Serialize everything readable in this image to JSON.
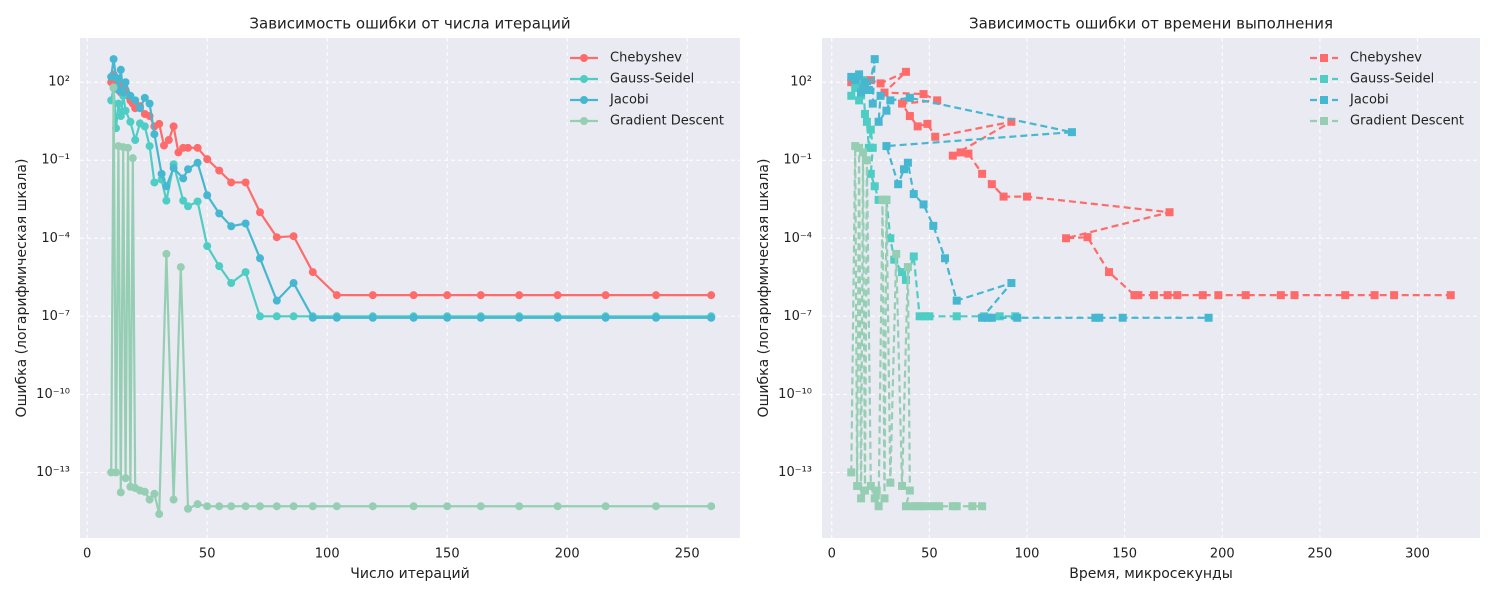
{
  "chart_data": [
    {
      "type": "line",
      "title": "Зависимость ошибки от числа итераций",
      "x_label": "Число итераций",
      "y_label": "Ошибка (логарифмическая шкала)",
      "xlim": [
        -3,
        272
      ],
      "ylim": [
        3e-16,
        5000
      ],
      "log_y": true,
      "grid": true,
      "legend": "upper right",
      "marker": "o",
      "linestyle": "solid",
      "xticks": [
        0,
        50,
        100,
        150,
        200,
        250
      ],
      "yticks": [
        {
          "value": 100,
          "label": "10²"
        },
        {
          "value": 0.1,
          "label": "10⁻¹"
        },
        {
          "value": 0.0001,
          "label": "10⁻⁴"
        },
        {
          "value": 1e-07,
          "label": "10⁻⁷"
        },
        {
          "value": 1e-10,
          "label": "10⁻¹⁰"
        },
        {
          "value": 1e-13,
          "label": "10⁻¹³"
        }
      ],
      "series": [
        {
          "name": "Chebyshev",
          "color": "#ff6b6b",
          "x": [
            10,
            11,
            12,
            13,
            14,
            15,
            16,
            17,
            18,
            19,
            20,
            22,
            24,
            26,
            28,
            30,
            32,
            34,
            36,
            38,
            40,
            42,
            46,
            50,
            55,
            60,
            66,
            72,
            79,
            86,
            94,
            104,
            119,
            136,
            150,
            164,
            180,
            196,
            216,
            237,
            260
          ],
          "values": [
            100,
            200,
            60,
            120,
            40,
            80,
            50,
            30,
            20,
            15,
            10,
            12,
            6,
            5,
            2,
            2.5,
            0.37,
            0.6,
            2,
            0.2,
            0.3,
            0.3,
            0.3,
            0.11,
            0.04,
            0.014,
            0.014,
            0.001,
            0.00011,
            0.00012,
            5e-06,
            6.5e-07,
            6.5e-07,
            6.5e-07,
            6.5e-07,
            6.5e-07,
            6.5e-07,
            6.5e-07,
            6.5e-07,
            6.5e-07,
            6.5e-07
          ]
        },
        {
          "name": "Gauss-Seidel",
          "color": "#4ecdc4",
          "x": [
            10,
            11,
            12,
            13,
            14,
            15,
            16,
            18,
            20,
            22,
            24,
            26,
            28,
            31,
            33,
            36,
            40,
            42,
            46,
            50,
            55,
            60,
            66,
            72,
            79,
            86,
            94,
            104,
            119,
            136,
            150,
            164,
            180,
            196,
            216,
            237,
            260
          ],
          "values": [
            20,
            60,
            1.7,
            15,
            5,
            30,
            8,
            3,
            0.6,
            2.6,
            2,
            0.35,
            0.014,
            0.018,
            0.0028,
            0.07,
            0.0028,
            0.0017,
            0.0026,
            5e-05,
            8.5e-06,
            1.9e-06,
            5e-06,
            1e-07,
            1e-07,
            1e-07,
            1e-07,
            1e-07,
            1e-07,
            1e-07,
            1e-07,
            1e-07,
            1e-07,
            1e-07,
            1e-07,
            1e-07,
            1e-07
          ]
        },
        {
          "name": "Jacobi",
          "color": "#45b7d1",
          "x": [
            10,
            11,
            12,
            13,
            14,
            15,
            16,
            18,
            20,
            22,
            24,
            26,
            28,
            31,
            33,
            36,
            40,
            42,
            46,
            50,
            55,
            60,
            66,
            72,
            79,
            86,
            94,
            104,
            119,
            136,
            150,
            164,
            180,
            196,
            216,
            237,
            260
          ],
          "values": [
            160,
            770,
            150,
            50,
            300,
            40,
            100,
            30,
            20,
            10,
            25,
            15,
            1,
            0.03,
            0.01,
            0.05,
            0.02,
            0.045,
            0.08,
            0.0045,
            0.0009,
            0.00029,
            0.00037,
            1.7e-05,
            4e-07,
            1.9e-06,
            8.8e-08,
            8.8e-08,
            8.8e-08,
            8.8e-08,
            8.8e-08,
            8.8e-08,
            8.8e-08,
            8.8e-08,
            8.8e-08,
            8.8e-08,
            8.8e-08
          ]
        },
        {
          "name": "Gradient Descent",
          "color": "#96ceb4",
          "x": [
            10,
            11,
            12,
            13,
            14,
            15,
            16,
            17,
            18,
            19,
            20,
            22,
            24,
            26,
            28,
            30,
            33,
            36,
            39,
            42,
            46,
            50,
            55,
            60,
            66,
            72,
            79,
            86,
            94,
            104,
            119,
            136,
            150,
            164,
            180,
            196,
            216,
            237,
            260
          ],
          "values": [
            1e-13,
            63,
            1e-13,
            0.35,
            1.7e-14,
            0.32,
            6e-14,
            0.3,
            2.8e-14,
            0.12,
            2.5e-14,
            2e-14,
            1.8e-14,
            9e-15,
            1.5e-14,
            2.5e-15,
            2.5e-05,
            9e-15,
            7.8e-06,
            4e-15,
            6e-15,
            5e-15,
            5e-15,
            5e-15,
            5e-15,
            5e-15,
            5e-15,
            5e-15,
            5e-15,
            5e-15,
            5e-15,
            5e-15,
            5e-15,
            5e-15,
            5e-15,
            5e-15,
            5e-15,
            5e-15,
            5e-15
          ]
        }
      ]
    },
    {
      "type": "line",
      "title": "Зависимость ошибки от времени выполнения",
      "x_label": "Время, микросекунды",
      "y_label": "Ошибка (логарифмическая шкала)",
      "xlim": [
        -5,
        332
      ],
      "ylim": [
        3e-16,
        5000
      ],
      "log_y": true,
      "grid": true,
      "legend": "upper right",
      "marker": "s",
      "linestyle": "dashed",
      "xticks": [
        0,
        50,
        100,
        150,
        200,
        250,
        300
      ],
      "yticks": [
        {
          "value": 100,
          "label": "10²"
        },
        {
          "value": 0.1,
          "label": "10⁻¹"
        },
        {
          "value": 0.0001,
          "label": "10⁻⁴"
        },
        {
          "value": 1e-07,
          "label": "10⁻⁷"
        },
        {
          "value": 1e-10,
          "label": "10⁻¹⁰"
        },
        {
          "value": 1e-13,
          "label": "10⁻¹³"
        }
      ],
      "series": [
        {
          "name": "Chebyshev",
          "color": "#ff6b6b",
          "x": [
            10,
            15,
            20,
            25,
            38,
            27,
            47,
            54,
            36,
            40,
            44,
            49,
            53,
            92,
            62,
            66,
            70,
            77,
            82,
            88,
            100,
            173,
            120,
            131,
            142,
            155,
            157,
            165,
            172,
            177,
            190,
            198,
            212,
            230,
            237,
            263,
            278,
            288,
            317
          ],
          "values": [
            100,
            60,
            120,
            90,
            250,
            40,
            35,
            20,
            15,
            5,
            2,
            2.5,
            0.8,
            3,
            0.15,
            0.2,
            0.18,
            0.03,
            0.012,
            0.004,
            0.004,
            0.001,
            0.0001,
            0.00011,
            5e-06,
            6.5e-07,
            6.5e-07,
            6.5e-07,
            6.5e-07,
            6.5e-07,
            6.5e-07,
            6.5e-07,
            6.5e-07,
            6.5e-07,
            6.5e-07,
            6.5e-07,
            6.5e-07,
            6.5e-07,
            6.5e-07
          ]
        },
        {
          "name": "Gauss-Seidel",
          "color": "#4ecdc4",
          "x": [
            10,
            12,
            13,
            14,
            15,
            16,
            17,
            18,
            19,
            20,
            21,
            20,
            22,
            24,
            26,
            28,
            30,
            32,
            36,
            38,
            42,
            45,
            48,
            50,
            64,
            78,
            86,
            94
          ],
          "values": [
            30,
            60,
            100,
            20,
            40,
            120,
            6,
            3,
            0.3,
            1.5,
            0.3,
            0.03,
            0.01,
            0.003,
            0.003,
            0.003,
            0.0001,
            1.5e-05,
            5e-06,
            2.5e-06,
            2e-05,
            1e-07,
            1e-07,
            1e-07,
            1e-07,
            1e-07,
            1e-07,
            1e-07
          ]
        },
        {
          "name": "Jacobi",
          "color": "#45b7d1",
          "x": [
            10,
            12,
            14,
            15,
            17,
            19,
            22,
            21,
            25,
            24,
            28,
            30,
            40,
            123,
            28,
            34,
            37,
            39,
            42,
            47,
            52,
            58,
            64,
            92,
            77,
            80,
            82,
            95,
            135,
            137,
            149,
            193
          ],
          "values": [
            160,
            120,
            200,
            40,
            100,
            50,
            770,
            15,
            30,
            3,
            8,
            20,
            25,
            1.2,
            0.35,
            0.012,
            0.045,
            0.08,
            0.005,
            0.002,
            0.0003,
            1.7e-05,
            4e-07,
            1.9e-06,
            8.8e-08,
            8.8e-08,
            8.8e-08,
            8.8e-08,
            8.8e-08,
            8.8e-08,
            8.8e-08,
            8.8e-08
          ]
        },
        {
          "name": "Gradient Descent",
          "color": "#96ceb4",
          "x": [
            10,
            12,
            13,
            14,
            15,
            16,
            17,
            18,
            20,
            22,
            23,
            24,
            26,
            27,
            28,
            30,
            33,
            36,
            39,
            40,
            38,
            42,
            44,
            46,
            48,
            52,
            55,
            62,
            64,
            72,
            77
          ],
          "values": [
            1e-13,
            0.35,
            3e-14,
            0.3,
            1e-14,
            0.2,
            2e-14,
            0.1,
            3e-14,
            1e-14,
            2e-14,
            5e-15,
            0.003,
            1e-14,
            0.003,
            4e-14,
            2.5e-05,
            3e-14,
            7.8e-06,
            2e-14,
            5e-15,
            5e-15,
            5e-15,
            5e-15,
            5e-15,
            5e-15,
            5e-15,
            5e-15,
            5e-15,
            5e-15,
            5e-15
          ]
        }
      ]
    }
  ]
}
